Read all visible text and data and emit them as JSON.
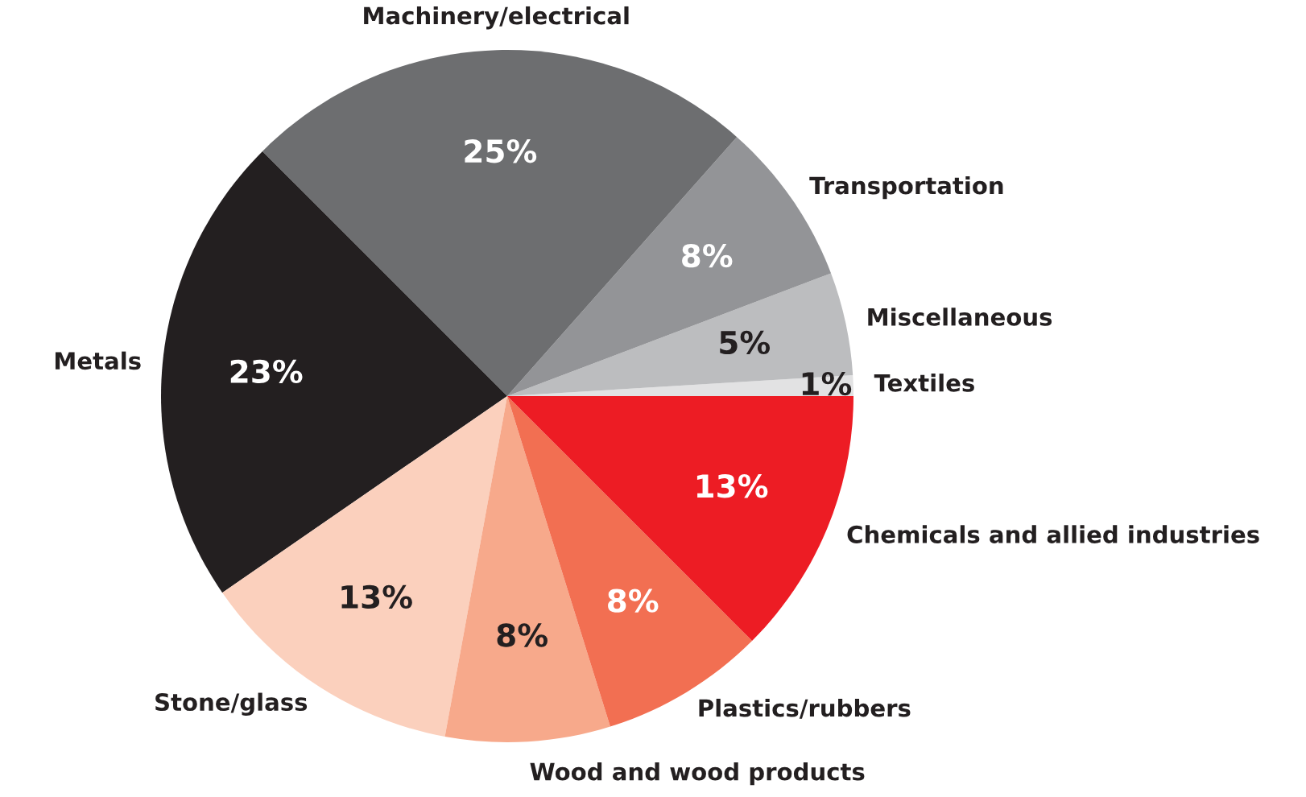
{
  "chart_data": {
    "type": "pie",
    "categories": [
      "Textiles",
      "Miscellaneous",
      "Transportation",
      "Machinery/electrical",
      "Metals",
      "Stone/glass",
      "Wood and wood products",
      "Plastics/rubbers",
      "Chemicals and allied industries"
    ],
    "values": [
      1,
      5,
      8,
      25,
      23,
      13,
      8,
      8,
      13
    ],
    "value_labels": [
      "1%",
      "5%",
      "8%",
      "25%",
      "23%",
      "13%",
      "8%",
      "8%",
      "13%"
    ],
    "colors": [
      "#e2e2e3",
      "#bcbdbf",
      "#939497",
      "#6d6e70",
      "#231f20",
      "#fbd0bd",
      "#f7a98b",
      "#f26f52",
      "#ed1c24"
    ],
    "legend": false
  }
}
